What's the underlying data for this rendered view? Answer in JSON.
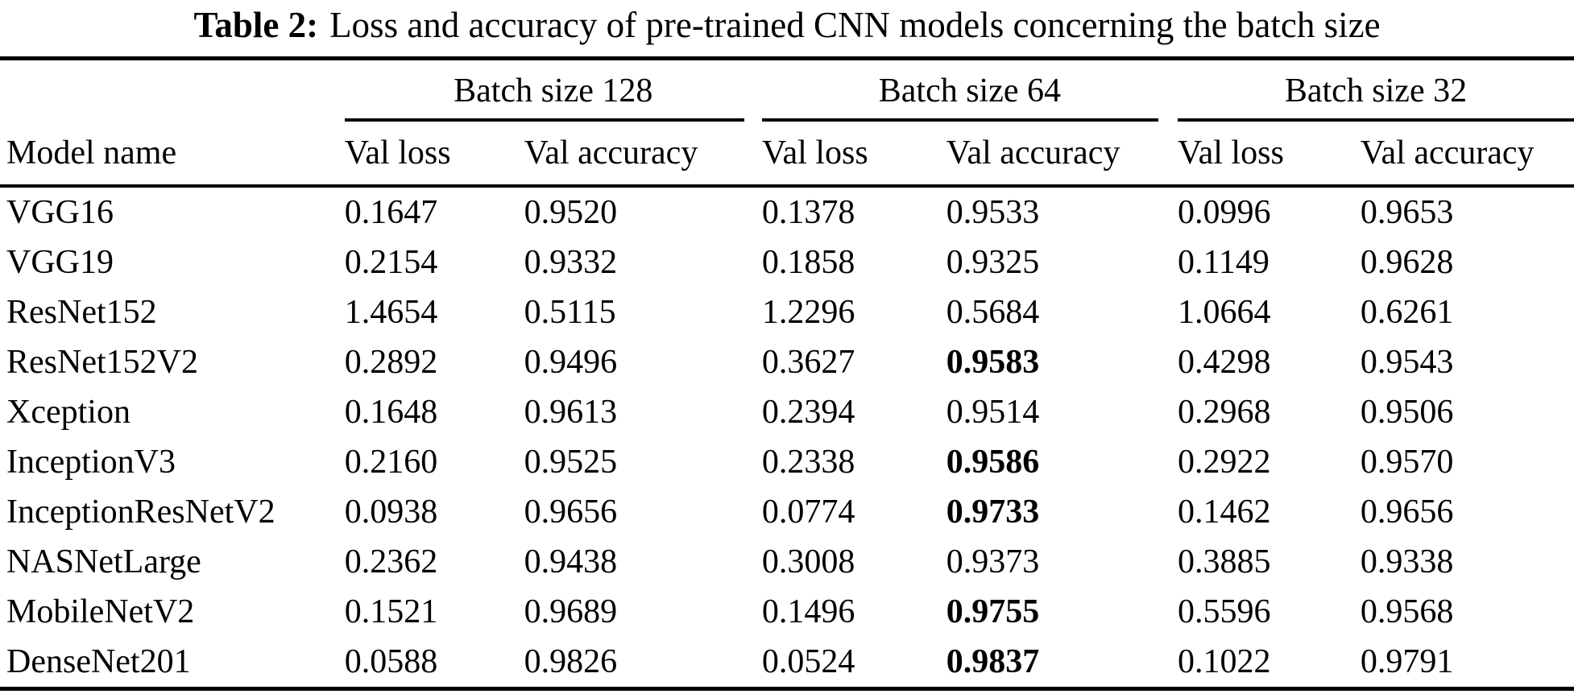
{
  "caption": {
    "label": "Table 2:",
    "text": "Loss and accuracy of pre-trained CNN models concerning the batch size"
  },
  "table": {
    "group_headers": [
      "Batch size 128",
      "Batch size 64",
      "Batch size 32"
    ],
    "col_headers": {
      "model": "Model name",
      "loss": "Val loss",
      "accuracy": "Val accuracy"
    },
    "rows": [
      {
        "model": "VGG16",
        "cells": [
          "0.1647",
          "0.9520",
          "0.1378",
          "0.9533",
          "0.0996",
          "0.9653"
        ],
        "bold": []
      },
      {
        "model": "VGG19",
        "cells": [
          "0.2154",
          "0.9332",
          "0.1858",
          "0.9325",
          "0.1149",
          "0.9628"
        ],
        "bold": []
      },
      {
        "model": "ResNet152",
        "cells": [
          "1.4654",
          "0.5115",
          "1.2296",
          "0.5684",
          "1.0664",
          "0.6261"
        ],
        "bold": []
      },
      {
        "model": "ResNet152V2",
        "cells": [
          "0.2892",
          "0.9496",
          "0.3627",
          "0.9583",
          "0.4298",
          "0.9543"
        ],
        "bold": [
          3
        ]
      },
      {
        "model": "Xception",
        "cells": [
          "0.1648",
          "0.9613",
          "0.2394",
          "0.9514",
          "0.2968",
          "0.9506"
        ],
        "bold": []
      },
      {
        "model": "InceptionV3",
        "cells": [
          "0.2160",
          "0.9525",
          "0.2338",
          "0.9586",
          "0.2922",
          "0.9570"
        ],
        "bold": [
          3
        ]
      },
      {
        "model": "InceptionResNetV2",
        "cells": [
          "0.0938",
          "0.9656",
          "0.0774",
          "0.9733",
          "0.1462",
          "0.9656"
        ],
        "bold": [
          3
        ]
      },
      {
        "model": "NASNetLarge",
        "cells": [
          "0.2362",
          "0.9438",
          "0.3008",
          "0.9373",
          "0.3885",
          "0.9338"
        ],
        "bold": []
      },
      {
        "model": "MobileNetV2",
        "cells": [
          "0.1521",
          "0.9689",
          "0.1496",
          "0.9755",
          "0.5596",
          "0.9568"
        ],
        "bold": [
          3
        ]
      },
      {
        "model": "DenseNet201",
        "cells": [
          "0.0588",
          "0.9826",
          "0.0524",
          "0.9837",
          "0.1022",
          "0.9791"
        ],
        "bold": [
          3
        ]
      }
    ]
  },
  "colors": {
    "text": "#000000",
    "background": "#ffffff",
    "rule": "#000000"
  }
}
